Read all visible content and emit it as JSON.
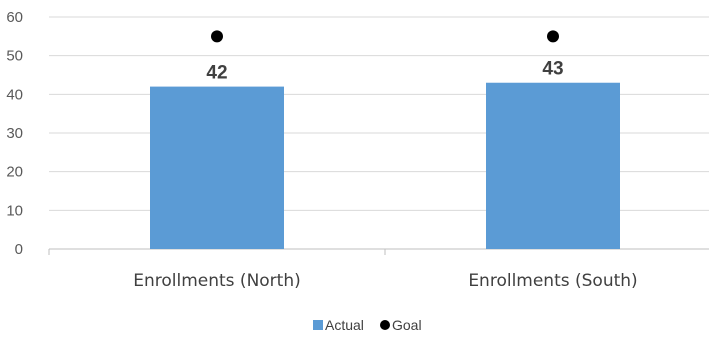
{
  "chart_data": {
    "type": "bar",
    "categories": [
      "Enrollments (North)",
      "Enrollments (South)"
    ],
    "series": [
      {
        "name": "Actual",
        "kind": "bar",
        "values": [
          42,
          43
        ],
        "color": "#5B9BD5",
        "data_labels": [
          "42",
          "43"
        ]
      },
      {
        "name": "Goal",
        "kind": "marker",
        "values": [
          55,
          55
        ],
        "color": "#000000"
      }
    ],
    "ylim": [
      0,
      60
    ],
    "yticks": [
      0,
      10,
      20,
      30,
      40,
      50,
      60
    ],
    "grid": true,
    "legend_position": "bottom",
    "title": "",
    "xlabel": "",
    "ylabel": ""
  },
  "colors": {
    "grid": "#D9D9D9",
    "axis": "#BFBFBF"
  }
}
